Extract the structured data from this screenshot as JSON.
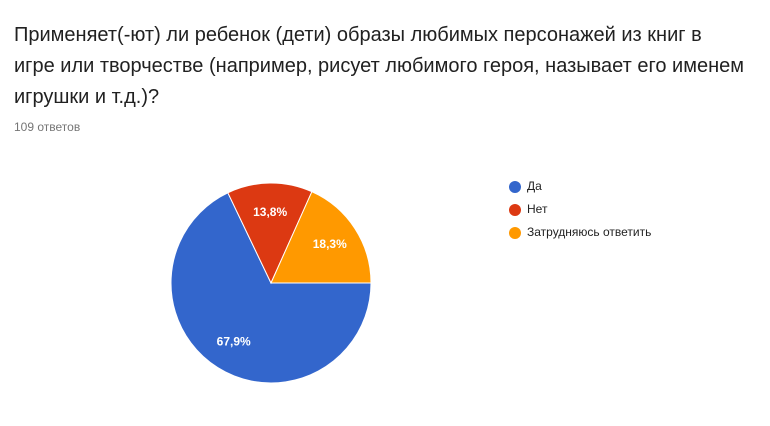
{
  "chart_data": {
    "type": "pie",
    "title": "Применяет(-ют) ли ребенок (дети) образы любимых персонажей из книг в игре или творчестве (например, рисует любимого героя, называет его именем игрушки и т.д.)?",
    "subtitle": "109 ответов",
    "categories": [
      "Да",
      "Нет",
      "Затрудняюсь ответить"
    ],
    "values": [
      67.9,
      13.8,
      18.3
    ],
    "value_labels": [
      "67,9%",
      "13,8%",
      "18,3%"
    ],
    "colors": [
      "#3366cc",
      "#dc3912",
      "#ff9900"
    ],
    "legend": "right"
  }
}
